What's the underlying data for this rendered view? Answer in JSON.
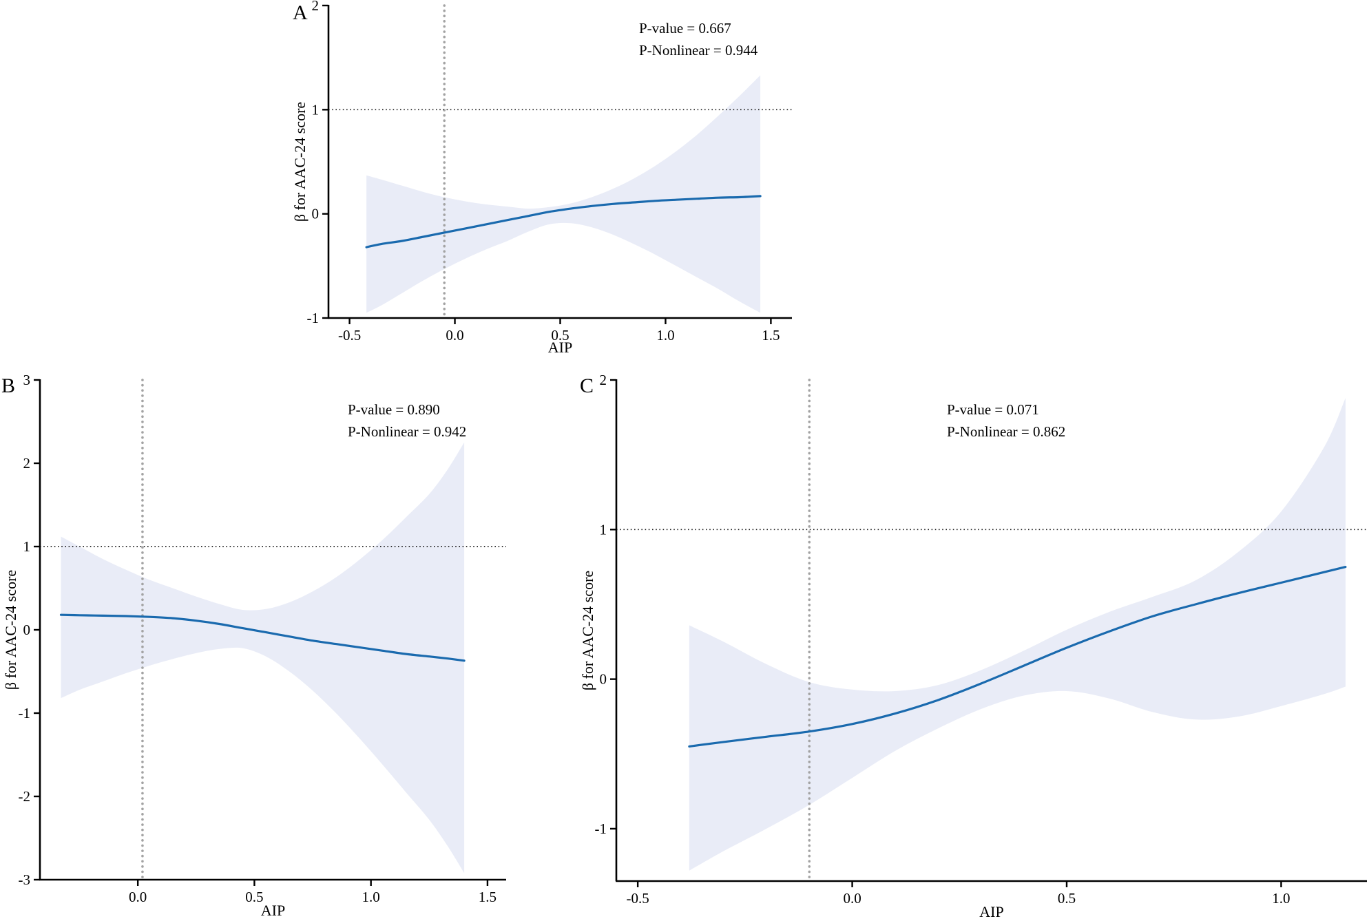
{
  "figure": {
    "background": "#ffffff"
  },
  "styles": {
    "line_color": "#1a6aae",
    "band_color": "#e9ecf7",
    "vline_color": "#a3a3a3",
    "hline_color": "#1a1a1a",
    "axis_color": "#000000"
  },
  "chart_data": [
    {
      "type": "line",
      "panel_label": "A",
      "xlabel": "AIP",
      "ylabel": "β for AAC-24 score",
      "annotation": {
        "p_value": "P-value = 0.667",
        "p_nonlinear": "P-Nonlinear = 0.944"
      },
      "xlim": [
        -0.6,
        1.6
      ],
      "ylim": [
        -1,
        2
      ],
      "xticks": [
        -0.5,
        0,
        0.5,
        1,
        1.5
      ],
      "xtick_labels": [
        "-0.5",
        "0.0",
        "0.5",
        "1.0",
        "1.5"
      ],
      "yticks": [
        -1,
        0,
        1,
        2
      ],
      "ytick_labels": [
        "-1",
        "0",
        "1",
        "2"
      ],
      "hline": 1,
      "vline": -0.05,
      "x": [
        -0.42,
        -0.35,
        -0.25,
        -0.15,
        -0.05,
        0.05,
        0.15,
        0.25,
        0.35,
        0.45,
        0.55,
        0.65,
        0.75,
        0.85,
        0.95,
        1.05,
        1.15,
        1.25,
        1.35,
        1.45
      ],
      "y": [
        -0.32,
        -0.29,
        -0.26,
        -0.22,
        -0.18,
        -0.14,
        -0.1,
        -0.06,
        -0.02,
        0.02,
        0.05,
        0.075,
        0.095,
        0.11,
        0.125,
        0.135,
        0.145,
        0.155,
        0.16,
        0.17
      ],
      "band_upper": [
        0.37,
        0.33,
        0.27,
        0.21,
        0.16,
        0.12,
        0.09,
        0.07,
        0.05,
        0.065,
        0.1,
        0.16,
        0.24,
        0.34,
        0.46,
        0.6,
        0.76,
        0.94,
        1.13,
        1.33
      ],
      "band_lower": [
        -0.95,
        -0.88,
        -0.76,
        -0.64,
        -0.53,
        -0.43,
        -0.34,
        -0.26,
        -0.17,
        -0.1,
        -0.09,
        -0.13,
        -0.2,
        -0.29,
        -0.39,
        -0.5,
        -0.61,
        -0.72,
        -0.84,
        -0.95
      ]
    },
    {
      "type": "line",
      "panel_label": "B",
      "xlabel": "AIP",
      "ylabel": "β for AAC-24 score",
      "annotation": {
        "p_value": "P-value = 0.890",
        "p_nonlinear": "P-Nonlinear = 0.942"
      },
      "xlim": [
        -0.42,
        1.58
      ],
      "ylim": [
        -3,
        3
      ],
      "xticks": [
        0,
        0.5,
        1,
        1.5
      ],
      "xtick_labels": [
        "0.0",
        "0.5",
        "1.0",
        "1.5"
      ],
      "yticks": [
        -3,
        -2,
        -1,
        0,
        1,
        2,
        3
      ],
      "ytick_labels": [
        "-3",
        "-2",
        "-1",
        "0",
        "1",
        "2",
        "3"
      ],
      "hline": 1,
      "vline": 0.02,
      "x": [
        -0.33,
        -0.25,
        -0.15,
        -0.05,
        0.05,
        0.15,
        0.25,
        0.35,
        0.45,
        0.55,
        0.65,
        0.75,
        0.85,
        0.95,
        1.05,
        1.15,
        1.25,
        1.33,
        1.4
      ],
      "y": [
        0.18,
        0.175,
        0.17,
        0.165,
        0.155,
        0.14,
        0.11,
        0.07,
        0.02,
        -0.03,
        -0.08,
        -0.13,
        -0.17,
        -0.21,
        -0.25,
        -0.29,
        -0.32,
        -0.345,
        -0.37
      ],
      "band_upper": [
        1.12,
        1.0,
        0.85,
        0.72,
        0.6,
        0.5,
        0.4,
        0.31,
        0.24,
        0.25,
        0.33,
        0.46,
        0.63,
        0.84,
        1.08,
        1.35,
        1.63,
        1.93,
        2.25
      ],
      "band_lower": [
        -0.82,
        -0.72,
        -0.62,
        -0.52,
        -0.43,
        -0.35,
        -0.28,
        -0.23,
        -0.22,
        -0.32,
        -0.5,
        -0.73,
        -1.0,
        -1.3,
        -1.62,
        -1.95,
        -2.28,
        -2.6,
        -2.92
      ]
    },
    {
      "type": "line",
      "panel_label": "C",
      "xlabel": "AIP",
      "ylabel": "β for AAC-24 score",
      "annotation": {
        "p_value": "P-value = 0.071",
        "p_nonlinear": "P-Nonlinear = 0.862"
      },
      "xlim": [
        -0.55,
        1.2
      ],
      "ylim": [
        -1.35,
        2
      ],
      "xticks": [
        -0.5,
        0,
        0.5,
        1
      ],
      "xtick_labels": [
        "-0.5",
        "0.0",
        "0.5",
        "1.0"
      ],
      "yticks": [
        -1,
        0,
        1,
        2
      ],
      "ytick_labels": [
        "-1",
        "0",
        "1",
        "2"
      ],
      "hline": 1,
      "vline": -0.1,
      "x": [
        -0.38,
        -0.3,
        -0.2,
        -0.1,
        0.0,
        0.1,
        0.2,
        0.3,
        0.4,
        0.5,
        0.6,
        0.7,
        0.8,
        0.9,
        1.0,
        1.1,
        1.15
      ],
      "y": [
        -0.45,
        -0.42,
        -0.385,
        -0.35,
        -0.3,
        -0.23,
        -0.14,
        -0.03,
        0.09,
        0.21,
        0.32,
        0.42,
        0.5,
        0.575,
        0.645,
        0.715,
        0.75
      ],
      "band_upper": [
        0.36,
        0.25,
        0.1,
        -0.02,
        -0.07,
        -0.08,
        -0.04,
        0.06,
        0.19,
        0.33,
        0.45,
        0.55,
        0.66,
        0.85,
        1.12,
        1.55,
        1.88
      ],
      "band_lower": [
        -1.28,
        -1.15,
        -1.0,
        -0.84,
        -0.66,
        -0.48,
        -0.33,
        -0.2,
        -0.11,
        -0.08,
        -0.13,
        -0.22,
        -0.27,
        -0.25,
        -0.18,
        -0.1,
        -0.05
      ]
    }
  ]
}
